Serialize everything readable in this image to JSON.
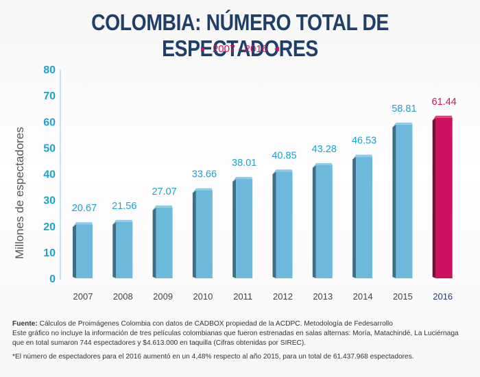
{
  "colors": {
    "title": "#1f3f6b",
    "accent": "#d0145a",
    "bar_front": "#6cb9dc",
    "bar_side": "#3f6f86",
    "bar_top": "#8fcbe6",
    "highlight_front": "#cc1160",
    "highlight_side": "#7d0c3b",
    "highlight_top": "#e0417f",
    "axis_text": "#1aa2d1",
    "value_label": "#1aa2d1",
    "year_text": "#444444",
    "highlight_year_text": "#1f3f6b"
  },
  "header": {
    "title": "COLOMBIA: NÚMERO TOTAL DE ESPECTADORES",
    "subtitle": "2007 - 2016",
    "left_marker_icon": "triangle-right-icon",
    "right_marker_icon": "triangle-left-icon"
  },
  "chart_data": {
    "type": "bar",
    "title": "COLOMBIA: NÚMERO TOTAL DE ESPECTADORES",
    "subtitle": "2007 - 2016",
    "xlabel": "",
    "ylabel": "Millones de espectadores",
    "categories": [
      "2007",
      "2008",
      "2009",
      "2010",
      "2011",
      "2012",
      "2013",
      "2014",
      "2015",
      "2016"
    ],
    "values": [
      20.67,
      21.56,
      27.07,
      33.66,
      38.01,
      40.85,
      43.28,
      46.53,
      58.81,
      61.44
    ],
    "value_labels": [
      "20.67",
      "21.56",
      "27.07",
      "33.66",
      "38.01",
      "40.85",
      "43.28",
      "46.53",
      "58.81",
      "61.44"
    ],
    "highlight_category": "2016",
    "ylim": [
      0,
      80
    ],
    "yticks": [
      "0",
      "10",
      "20",
      "30",
      "40",
      "50",
      "60",
      "70",
      "80"
    ],
    "grid": false,
    "legend": "none"
  },
  "footer": {
    "source_label": "Fuente:",
    "source_text": " Cálculos de Proimágenes Colombia con datos de CADBOX propiedad de la ACDPC. Metodología de Fedesarrollo",
    "note1": "Este gráfico no incluye la información de tres películas colombianas que fueron estrenadas en salas alternas: Moría, Matachindé, La Luciérnaga que en total sumaron 744 espectadores y $4.613.000 en taquilla (Cifras obtenidas por SIREC).",
    "note2": "*El número de espectadores para el 2016 aumentó en un 4,48% respecto al año 2015, para un total de 61.437.968 espectadores."
  }
}
